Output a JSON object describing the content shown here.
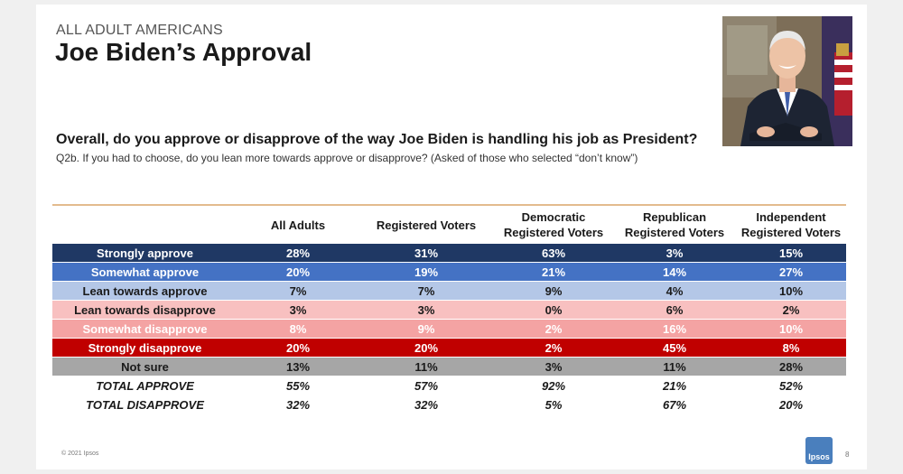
{
  "header": {
    "kicker": "ALL ADULT AMERICANS",
    "title": "Joe Biden’s Approval"
  },
  "question": {
    "main": "Overall, do you approve or disapprove of the way Joe Biden is handling his job as President?",
    "sub": "Q2b. If you had to choose, do you lean more towards approve or disapprove? (Asked of those who selected “don’t know”)"
  },
  "table": {
    "columns": [
      {
        "line1": "All Adults",
        "line2": ""
      },
      {
        "line1": "Registered Voters",
        "line2": ""
      },
      {
        "line1": "Democratic",
        "line2": "Registered Voters"
      },
      {
        "line1": "Republican",
        "line2": "Registered Voters"
      },
      {
        "line1": "Independent",
        "line2": "Registered Voters"
      }
    ],
    "rows": [
      {
        "label": "Strongly approve",
        "values": [
          "28%",
          "31%",
          "63%",
          "3%",
          "15%"
        ],
        "bg": "#1f3864",
        "fg": "#ffffff"
      },
      {
        "label": "Somewhat approve",
        "values": [
          "20%",
          "19%",
          "21%",
          "14%",
          "27%"
        ],
        "bg": "#4472c4",
        "fg": "#ffffff"
      },
      {
        "label": "Lean towards approve",
        "values": [
          "7%",
          "7%",
          "9%",
          "4%",
          "10%"
        ],
        "bg": "#b4c7e7",
        "fg": "#1a1a1a"
      },
      {
        "label": "Lean towards disapprove",
        "values": [
          "3%",
          "3%",
          "0%",
          "6%",
          "2%"
        ],
        "bg": "#f8c0c0",
        "fg": "#1a1a1a"
      },
      {
        "label": "Somewhat disapprove",
        "values": [
          "8%",
          "9%",
          "2%",
          "16%",
          "10%"
        ],
        "bg": "#f4a3a3",
        "fg": "#ffffff"
      },
      {
        "label": "Strongly disapprove",
        "values": [
          "20%",
          "20%",
          "2%",
          "45%",
          "8%"
        ],
        "bg": "#c00000",
        "fg": "#ffffff"
      },
      {
        "label": "Not sure",
        "values": [
          "13%",
          "11%",
          "3%",
          "11%",
          "28%"
        ],
        "bg": "#a6a6a6",
        "fg": "#1a1a1a"
      }
    ],
    "totals": [
      {
        "label": "TOTAL APPROVE",
        "values": [
          "55%",
          "57%",
          "92%",
          "21%",
          "52%"
        ]
      },
      {
        "label": "TOTAL DISAPPROVE",
        "values": [
          "32%",
          "32%",
          "5%",
          "67%",
          "20%"
        ]
      }
    ],
    "rule_color": "#e3bb8e"
  },
  "footer": {
    "copyright": "© 2021 Ipsos",
    "logo": "Ipsos",
    "page": "8"
  }
}
